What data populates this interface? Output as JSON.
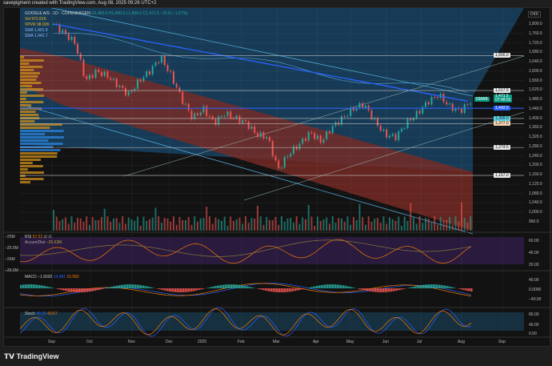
{
  "header": "savepigment created with TradingView.com, Aug 08, 2025 09:26 UTC+2",
  "legend": {
    "symbol": "GOOGLE A/S · 1D · COPENHAGEN",
    "ohlc": "O1,483.5 H1,490.5 L1,456.0 C1,471.5 −25.0 (−1.67%)",
    "vol": "Vol 972.81K",
    "vpvr": "VPVR 98.02K",
    "sma1": "SMA 1,401.8",
    "sma2": "SMA 1,442.7"
  },
  "currency": "DKK",
  "price_ticks": [
    "1,800.0",
    "1,760.0",
    "1,720.0",
    "1,680.0",
    "1,640.0",
    "1,600.0",
    "1,560.0",
    "1,520.0",
    "1,480.0",
    "1,440.0",
    "1,400.0",
    "1,360.0",
    "1,320.0",
    "1,280.0",
    "1,240.0",
    "1,200.0",
    "1,160.0",
    "1,120.0",
    "1,080.0",
    "1,040.0",
    "1,000.0",
    "960.0"
  ],
  "levels": [
    {
      "label": "1,666.0",
      "value": 1666
    },
    {
      "label": "1,517.5",
      "value": 1517.5
    },
    {
      "label": "1,399.0",
      "value": 1399,
      "color": "#5bd6e6"
    },
    {
      "label": "1,377.0",
      "value": 1377,
      "color": "#f5d7b5"
    },
    {
      "label": "1,274.5",
      "value": 1274.5
    },
    {
      "label": "1,157.0",
      "value": 1157
    }
  ],
  "sma_level": {
    "label": "1,442.5",
    "value": 1442.5,
    "color": "#2962ff"
  },
  "last_price": {
    "label": "1,471.5",
    "countdown": "07:48:55",
    "value": 1471.5,
    "badge": "GMAB",
    "color": "#089981"
  },
  "price_path": [
    1800,
    1760,
    1720,
    1560,
    1600,
    1580,
    1540,
    1500,
    1560,
    1600,
    1660,
    1580,
    1480,
    1400,
    1440,
    1380,
    1420,
    1400,
    1380,
    1330,
    1320,
    1180,
    1250,
    1290,
    1340,
    1300,
    1360,
    1400,
    1440,
    1460,
    1390,
    1330,
    1320,
    1380,
    1420,
    1470,
    1500,
    1450,
    1430,
    1471
  ],
  "rsi": {
    "title": "RSI",
    "v1": "57.52",
    "v2": "∅ ∅",
    "sub": "Accum/Dist",
    "sub_v": "−25.63M",
    "ticks": [
      "60.00",
      "40.00",
      "20.00"
    ],
    "left_ticks": [
      "−25M",
      "−25.5M",
      "−26M",
      "−26.5M"
    ]
  },
  "macd": {
    "title": "MACD",
    "v1": "−1.6020",
    "v2": "14.981",
    "v3": "16.583",
    "ticks": [
      "40.00",
      "0.0000",
      "−40.00"
    ]
  },
  "stoch": {
    "title": "Stoch",
    "v1": "49.39",
    "v2": "43.67",
    "ticks": [
      "80.00",
      "40.00",
      "0.00"
    ]
  },
  "time_ticks": [
    "Sep",
    "Oct",
    "Nov",
    "Dec",
    "2025",
    "Feb",
    "Mar",
    "Apr",
    "May",
    "Jun",
    "Jul",
    "Aug",
    "Sep"
  ],
  "brand": "TradingView"
}
